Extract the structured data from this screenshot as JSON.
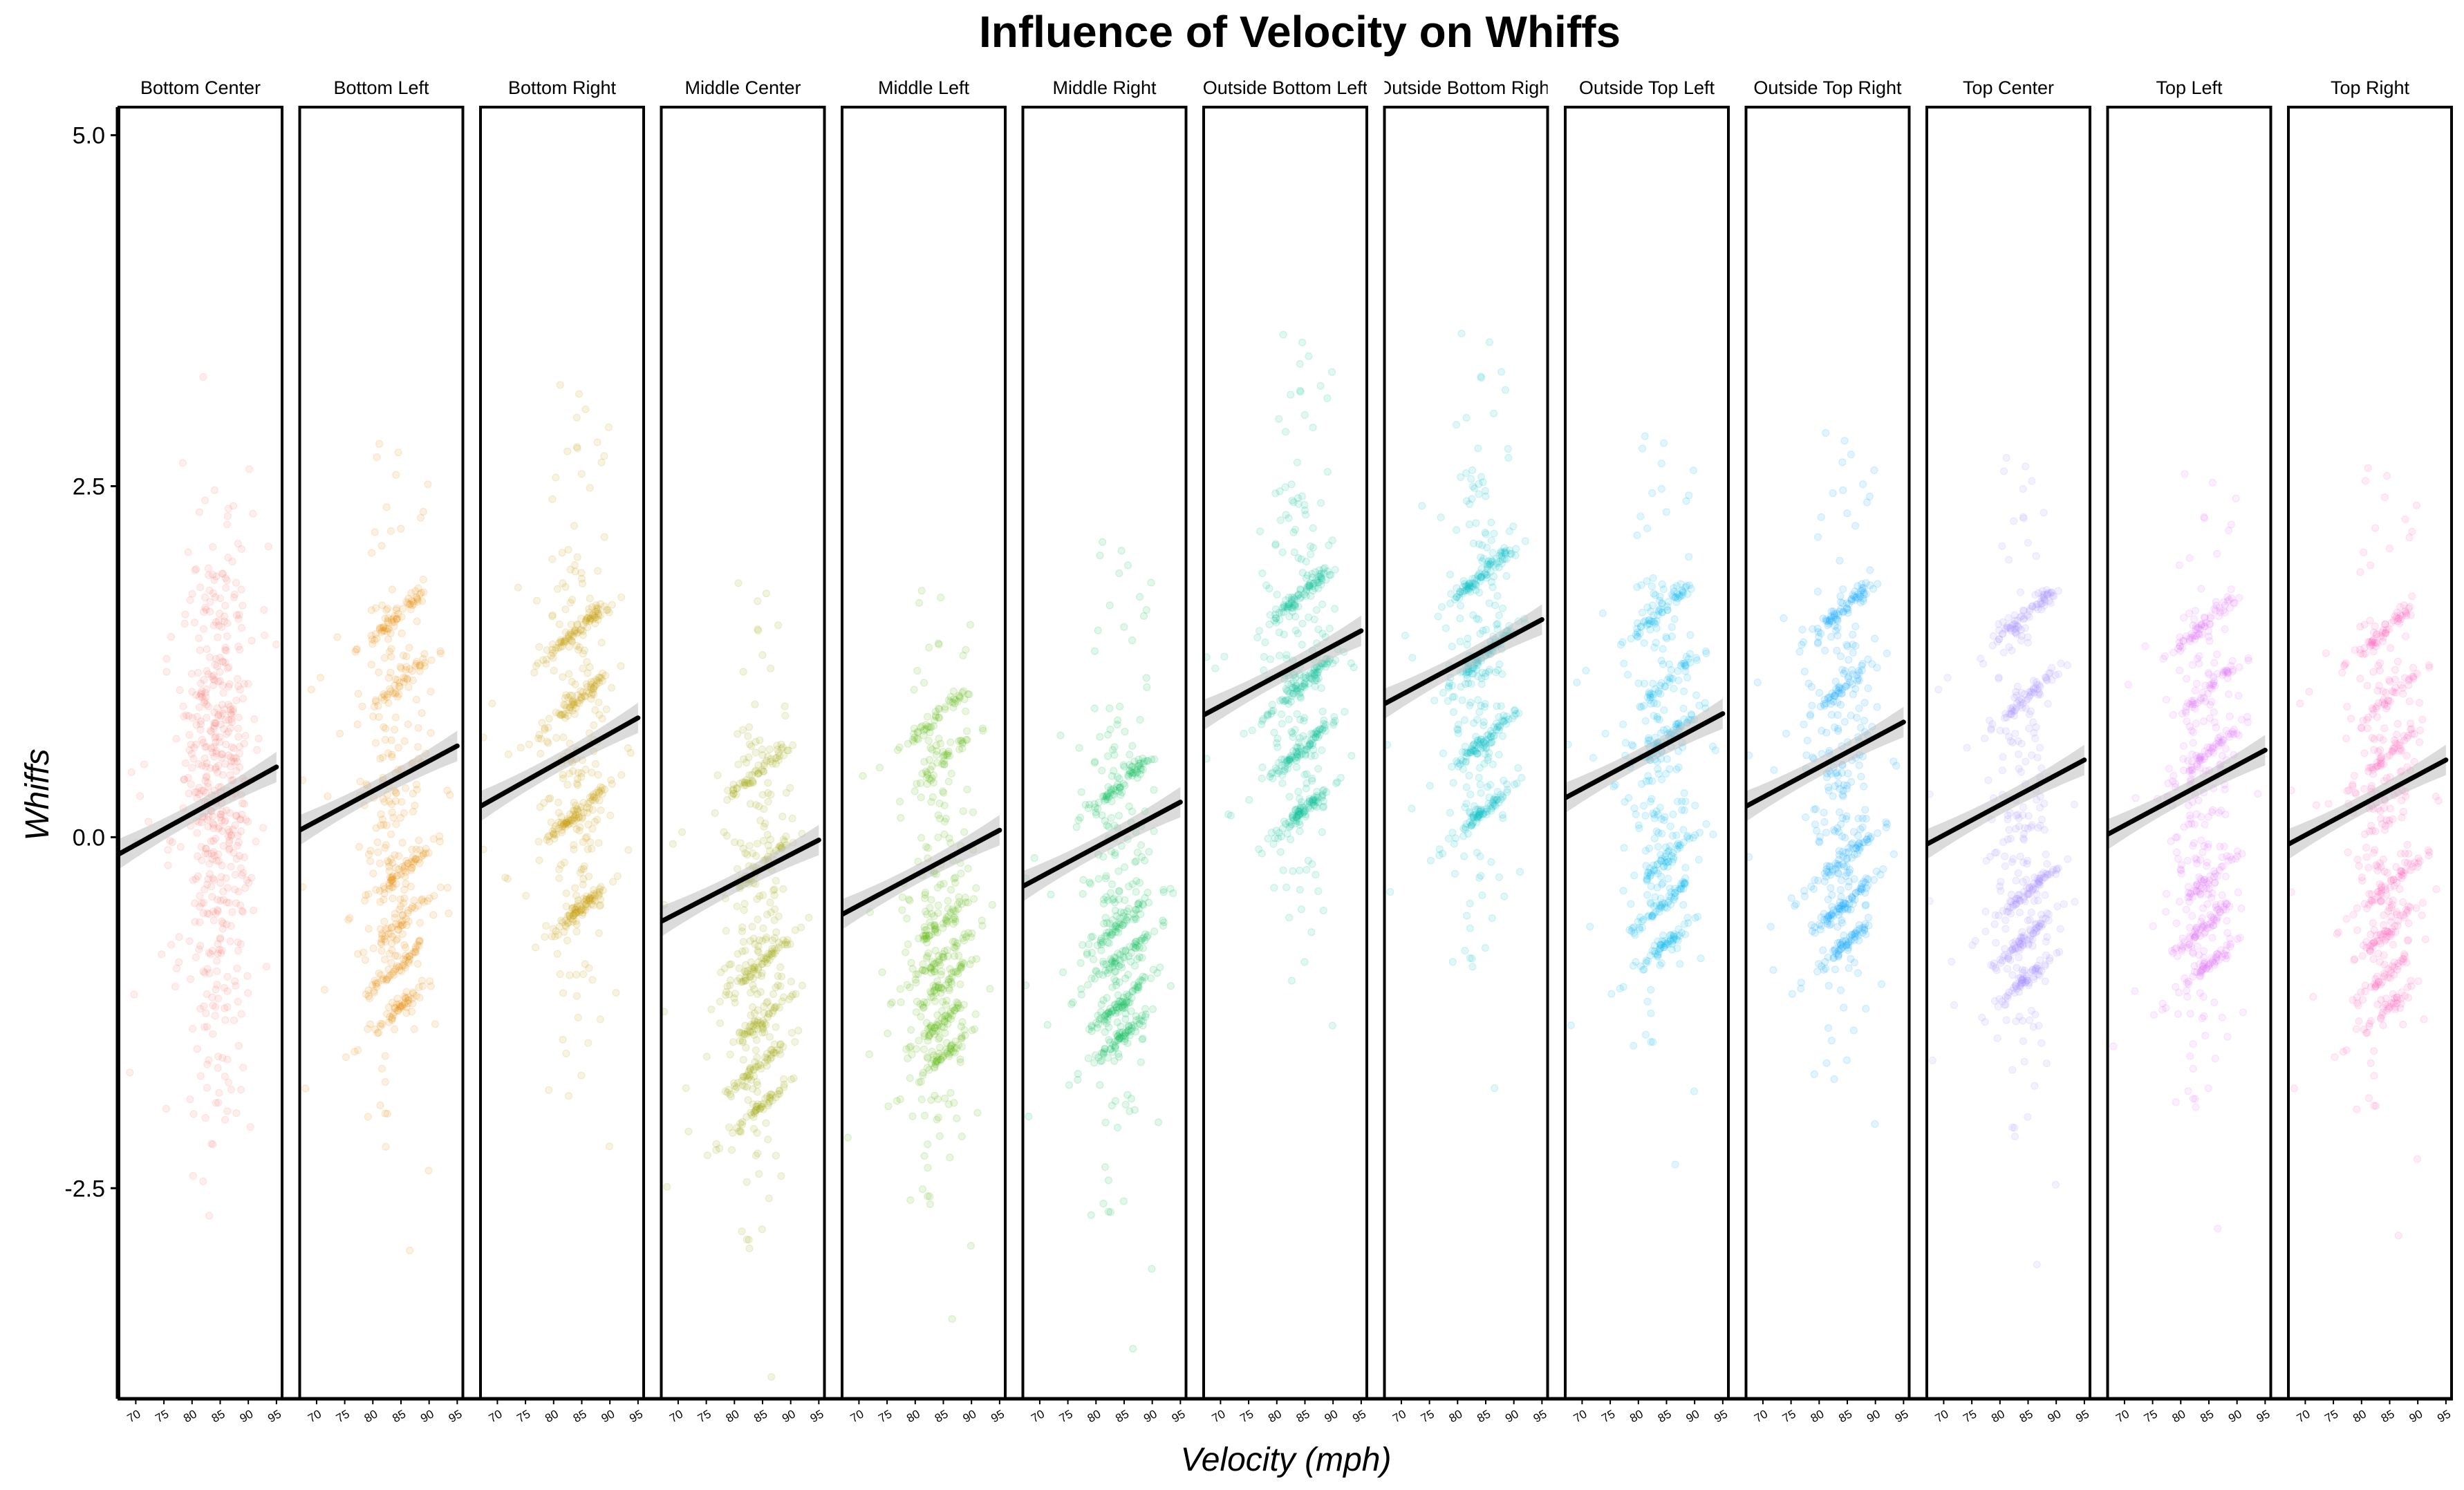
{
  "chart_data": {
    "type": "scatter",
    "title": "Influence of Velocity on Whiffs",
    "xlabel": "Velocity (mph)",
    "ylabel": "Whiffs",
    "xlim": [
      67,
      96
    ],
    "ylim": [
      -4,
      5.2
    ],
    "x_ticks": [
      70,
      75,
      80,
      85,
      90,
      95
    ],
    "x_tick_labels": [
      "70",
      "75",
      "80",
      "85",
      "90",
      "95"
    ],
    "y_ticks": [
      5.0,
      2.5,
      0.0,
      -2.5
    ],
    "y_tick_labels": [
      "5.0",
      "2.5",
      "0.0",
      "-2.5"
    ],
    "facet_by": "zone",
    "grid": false,
    "legend": "none",
    "point_alpha": 0.12,
    "panels": [
      {
        "label": "Bottom Center",
        "color": "#F8766D",
        "fit": {
          "x": [
            67,
            95
          ],
          "y": [
            -0.12,
            0.5
          ]
        },
        "center": 0.3,
        "spread": 1.0,
        "bands": []
      },
      {
        "label": "Bottom Left",
        "color": "#E38900",
        "fit": {
          "x": [
            67,
            95
          ],
          "y": [
            0.05,
            0.65
          ]
        },
        "center": 0.3,
        "spread": 1.05,
        "bands": [
          1.6,
          1.1,
          -0.25,
          -0.6,
          -0.9,
          -1.2
        ]
      },
      {
        "label": "Bottom Right",
        "color": "#C49A00",
        "fit": {
          "x": [
            67,
            95
          ],
          "y": [
            0.22,
            0.85
          ]
        },
        "center": 0.6,
        "spread": 1.1,
        "bands": [
          1.5,
          1.0,
          0.2,
          -0.5
        ]
      },
      {
        "label": "Middle Center",
        "color": "#99A800",
        "fit": {
          "x": [
            67,
            95
          ],
          "y": [
            -0.6,
            -0.02
          ]
        },
        "center": -0.6,
        "spread": 1.05,
        "bands": [
          0.5,
          -0.2,
          -0.9,
          -1.3,
          -1.6,
          -1.9
        ]
      },
      {
        "label": "Middle Left",
        "color": "#53B400",
        "fit": {
          "x": [
            67,
            95
          ],
          "y": [
            -0.55,
            0.05
          ]
        },
        "center": -0.5,
        "spread": 0.95,
        "bands": [
          0.9,
          0.55,
          -0.6,
          -0.85,
          -1.05,
          -1.3,
          -1.55
        ]
      },
      {
        "label": "Middle Right",
        "color": "#00BC56",
        "fit": {
          "x": [
            67,
            95
          ],
          "y": [
            -0.35,
            0.25
          ]
        },
        "center": -0.4,
        "spread": 1.05,
        "bands": [
          0.4,
          -0.6,
          -0.85,
          -1.15,
          -1.4
        ]
      },
      {
        "label": "Outside Bottom Left",
        "color": "#00C094",
        "fit": {
          "x": [
            67,
            95
          ],
          "y": [
            0.87,
            1.47
          ]
        },
        "center": 1.2,
        "spread": 1.0,
        "bands": [
          1.75,
          1.1,
          0.65,
          0.2
        ]
      },
      {
        "label": "Outside Bottom Right",
        "color": "#00BFC4",
        "fit": {
          "x": [
            67,
            95
          ],
          "y": [
            0.95,
            1.55
          ]
        },
        "center": 1.3,
        "spread": 1.0,
        "bands": [
          1.9,
          1.3,
          0.7,
          0.2
        ]
      },
      {
        "label": "Outside Top Left",
        "color": "#00B6EB",
        "fit": {
          "x": [
            67,
            95
          ],
          "y": [
            0.28,
            0.88
          ]
        },
        "center": 0.6,
        "spread": 0.95,
        "bands": [
          1.65,
          1.1,
          0.7,
          -0.15,
          -0.45,
          -0.75
        ]
      },
      {
        "label": "Outside Top Right",
        "color": "#06A4FF",
        "fit": {
          "x": [
            67,
            95
          ],
          "y": [
            0.22,
            0.82
          ]
        },
        "center": 0.5,
        "spread": 1.0,
        "bands": [
          1.65,
          1.1,
          -0.15,
          -0.45,
          -0.75
        ]
      },
      {
        "label": "Top Center",
        "color": "#A58AFF",
        "fit": {
          "x": [
            67,
            95
          ],
          "y": [
            -0.05,
            0.55
          ]
        },
        "center": 0.2,
        "spread": 1.05,
        "bands": [
          1.6,
          1.0,
          -0.4,
          -0.7,
          -1.0
        ]
      },
      {
        "label": "Top Left",
        "color": "#DF70F8",
        "fit": {
          "x": [
            67,
            95
          ],
          "y": [
            0.02,
            0.62
          ]
        },
        "center": 0.3,
        "spread": 1.0,
        "bands": [
          1.55,
          1.05,
          0.6,
          -0.3,
          -0.6,
          -0.9
        ]
      },
      {
        "label": "Top Right",
        "color": "#FF62BC",
        "fit": {
          "x": [
            67,
            95
          ],
          "y": [
            -0.05,
            0.55
          ]
        },
        "center": 0.25,
        "spread": 1.0,
        "bands": [
          1.5,
          1.0,
          0.6,
          -0.35,
          -0.65,
          -0.95,
          -1.2
        ]
      }
    ]
  }
}
